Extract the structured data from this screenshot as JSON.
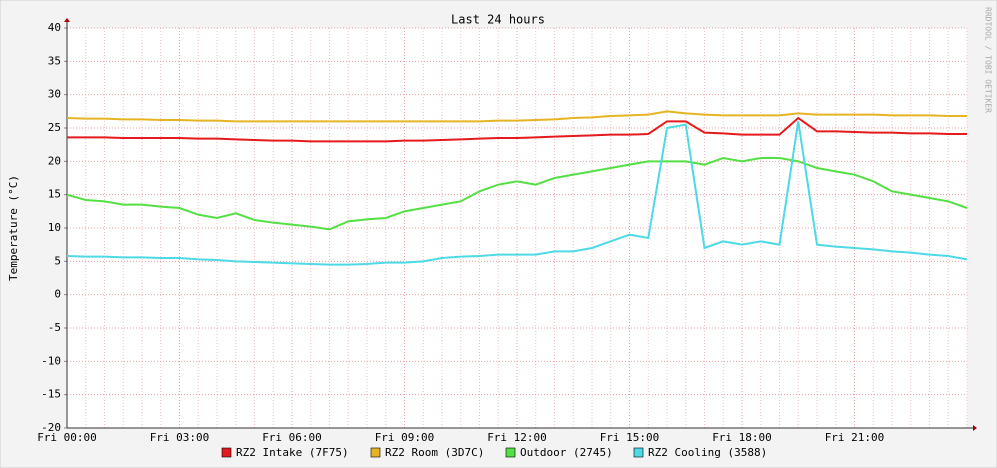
{
  "chart_data": {
    "type": "line",
    "title": "Last 24 hours",
    "y_label": "Temperature (°C)",
    "side_text": "RRDTOOL / TOBI OETIKER",
    "categories": [
      "Fri 00:00",
      null,
      null,
      null,
      null,
      null,
      "Fri 03:00",
      null,
      null,
      null,
      null,
      null,
      "Fri 06:00",
      null,
      null,
      null,
      null,
      null,
      "Fri 09:00",
      null,
      null,
      null,
      null,
      null,
      "Fri 12:00",
      null,
      null,
      null,
      null,
      null,
      "Fri 15:00",
      null,
      null,
      null,
      null,
      null,
      "Fri 18:00",
      null,
      null,
      null,
      null,
      null,
      "Fri 21:00",
      null,
      null,
      null,
      null,
      null,
      null
    ],
    "ylim": [
      -20,
      40
    ],
    "yticks": [
      -20,
      -15,
      -10,
      -5,
      0,
      5,
      10,
      15,
      20,
      25,
      30,
      35,
      40
    ],
    "grid": true,
    "series": [
      {
        "name": "RZ2 Intake (7F75)",
        "color": "#e41a1c",
        "values": [
          23.6,
          23.6,
          23.6,
          23.5,
          23.5,
          23.5,
          23.5,
          23.4,
          23.4,
          23.3,
          23.2,
          23.1,
          23.1,
          23.0,
          23.0,
          23.0,
          23.0,
          23.0,
          23.1,
          23.1,
          23.2,
          23.3,
          23.4,
          23.5,
          23.5,
          23.6,
          23.7,
          23.8,
          23.9,
          24.0,
          24.0,
          24.1,
          26.0,
          26.0,
          24.3,
          24.2,
          24.0,
          24.0,
          24.0,
          26.5,
          24.5,
          24.5,
          24.4,
          24.3,
          24.3,
          24.2,
          24.2,
          24.1,
          24.1
        ]
      },
      {
        "name": "RZ2 Room (3D7C)",
        "color": "#e6b422",
        "values": [
          26.5,
          26.4,
          26.4,
          26.3,
          26.3,
          26.2,
          26.2,
          26.1,
          26.1,
          26.0,
          26.0,
          26.0,
          26.0,
          26.0,
          26.0,
          26.0,
          26.0,
          26.0,
          26.0,
          26.0,
          26.0,
          26.0,
          26.0,
          26.1,
          26.1,
          26.2,
          26.3,
          26.5,
          26.6,
          26.8,
          26.9,
          27.0,
          27.5,
          27.2,
          27.0,
          26.9,
          26.9,
          26.9,
          26.9,
          27.2,
          27.0,
          27.0,
          27.0,
          27.0,
          26.9,
          26.9,
          26.9,
          26.8,
          26.8
        ]
      },
      {
        "name": "Outdoor (2745)",
        "color": "#54e044",
        "values": [
          15.0,
          14.2,
          14.0,
          13.5,
          13.5,
          13.2,
          13.0,
          12.0,
          11.5,
          12.2,
          11.2,
          10.8,
          10.5,
          10.2,
          9.8,
          11.0,
          11.3,
          11.5,
          12.5,
          13.0,
          13.5,
          14.0,
          15.5,
          16.5,
          17.0,
          16.5,
          17.5,
          18.0,
          18.5,
          19.0,
          19.5,
          20.0,
          20.0,
          20.0,
          19.5,
          20.5,
          20.0,
          20.5,
          20.5,
          20.0,
          19.0,
          18.5,
          18.0,
          17.0,
          15.5,
          15.0,
          14.5,
          14.0,
          13.0
        ]
      },
      {
        "name": "RZ2 Cooling (3588)",
        "color": "#4dd9e6",
        "values": [
          5.8,
          5.7,
          5.7,
          5.6,
          5.6,
          5.5,
          5.5,
          5.3,
          5.2,
          5.0,
          4.9,
          4.8,
          4.7,
          4.6,
          4.5,
          4.5,
          4.6,
          4.8,
          4.8,
          5.0,
          5.5,
          5.7,
          5.8,
          6.0,
          6.0,
          6.0,
          6.5,
          6.5,
          7.0,
          8.0,
          9.0,
          8.5,
          25.0,
          25.5,
          7.0,
          8.0,
          7.5,
          8.0,
          7.5,
          26.0,
          7.5,
          7.2,
          7.0,
          6.8,
          6.5,
          6.3,
          6.0,
          5.8,
          5.3
        ]
      }
    ]
  }
}
